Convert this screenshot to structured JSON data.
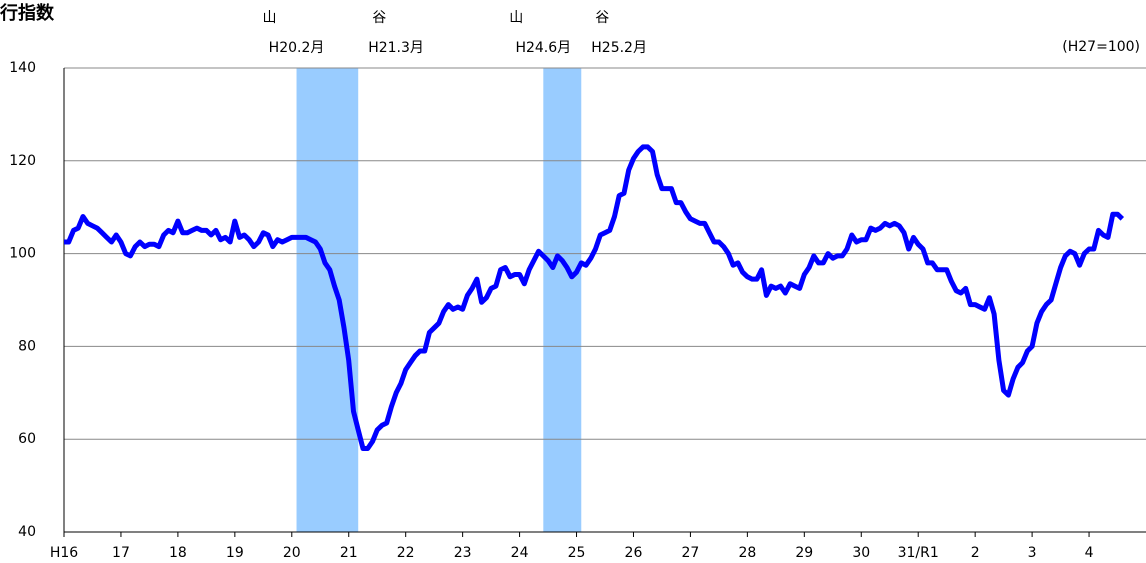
{
  "chart_data": {
    "type": "line",
    "title": "行指数",
    "note": "(H27=100)",
    "categories": [
      "H16",
      null,
      null,
      null,
      null,
      null,
      null,
      null,
      null,
      null,
      null,
      null,
      "17",
      null,
      null,
      null,
      null,
      null,
      null,
      null,
      null,
      null,
      null,
      null,
      "18",
      null,
      null,
      null,
      null,
      null,
      null,
      null,
      null,
      null,
      null,
      null,
      "19",
      null,
      null,
      null,
      null,
      null,
      null,
      null,
      null,
      null,
      null,
      null,
      "20",
      null,
      null,
      null,
      null,
      null,
      null,
      null,
      null,
      null,
      null,
      null,
      "21",
      null,
      null,
      null,
      null,
      null,
      null,
      null,
      null,
      null,
      null,
      null,
      "22",
      null,
      null,
      null,
      null,
      null,
      null,
      null,
      null,
      null,
      null,
      null,
      "23",
      null,
      null,
      null,
      null,
      null,
      null,
      null,
      null,
      null,
      null,
      null,
      "24",
      null,
      null,
      null,
      null,
      null,
      null,
      null,
      null,
      null,
      null,
      null,
      "25",
      null,
      null,
      null,
      null,
      null,
      null,
      null,
      null,
      null,
      null,
      null,
      "26",
      null,
      null,
      null,
      null,
      null,
      null,
      null,
      null,
      null,
      null,
      null,
      "27",
      null,
      null,
      null,
      null,
      null,
      null,
      null,
      null,
      null,
      null,
      null,
      "28",
      null,
      null,
      null,
      null,
      null,
      null,
      null,
      null,
      null,
      null,
      null,
      "29",
      null,
      null,
      null,
      null,
      null,
      null,
      null,
      null,
      null,
      null,
      null,
      "30",
      null,
      null,
      null,
      null,
      null,
      null,
      null,
      null,
      null,
      null,
      null,
      "31/R1",
      null,
      null,
      null,
      null,
      null,
      null,
      null,
      null,
      null,
      null,
      null,
      "2",
      null,
      null,
      null,
      null,
      null,
      null,
      null,
      null,
      null,
      null,
      null,
      "3",
      null,
      null,
      null,
      null,
      null,
      null,
      null,
      null,
      null,
      null,
      null,
      "4",
      null,
      null,
      null,
      null,
      null,
      null,
      null
    ],
    "series": [
      {
        "color": "#0000ff",
        "values": [
          102.5,
          102.5,
          105,
          105.5,
          108,
          106.5,
          106,
          105.5,
          104.5,
          103.5,
          102.5,
          104,
          102.5,
          100,
          99.5,
          101.5,
          102.5,
          101.5,
          102,
          102,
          101.5,
          104,
          105,
          104.5,
          107,
          104.5,
          104.5,
          105,
          105.5,
          105,
          105,
          104,
          105,
          103,
          103.5,
          102.5,
          107,
          103.5,
          104,
          103,
          101.5,
          102.5,
          104.5,
          104,
          101.5,
          103,
          102.5,
          103,
          103.5,
          103.5,
          103.5,
          103.5,
          103,
          102.5,
          101,
          98,
          96.5,
          93,
          90,
          84,
          77,
          66,
          62,
          58,
          58,
          59.5,
          62,
          63,
          63.5,
          67,
          70,
          72,
          75,
          76.5,
          78,
          79,
          79,
          83,
          84,
          85,
          87.5,
          89,
          88,
          88.5,
          88,
          91,
          92.5,
          94.5,
          89.5,
          90.5,
          92.5,
          93,
          96.5,
          97,
          95,
          95.5,
          95.5,
          93.5,
          96.5,
          98.5,
          100.5,
          99.5,
          98.5,
          97,
          99.5,
          98.5,
          97,
          95,
          96,
          98,
          97.5,
          99,
          101,
          104,
          104.5,
          105,
          108,
          112.5,
          113,
          118,
          120.5,
          122,
          123,
          123,
          122,
          117,
          114,
          114,
          114,
          111,
          111,
          109,
          107.5,
          107,
          106.5,
          106.5,
          104.5,
          102.5,
          102.5,
          101.5,
          100,
          97.5,
          98,
          96,
          95,
          94.5,
          94.5,
          96.5,
          91,
          93,
          92.5,
          93,
          91.5,
          93.5,
          93,
          92.5,
          95.5,
          97,
          99.5,
          98,
          98,
          100,
          99,
          99.5,
          99.5,
          101,
          104,
          102.5,
          103,
          103,
          105.5,
          105,
          105.5,
          106.5,
          106,
          106.5,
          106,
          104.5,
          101,
          103.5,
          102,
          101,
          98,
          98,
          96.5,
          96.5,
          96.5,
          94,
          92,
          91.5,
          92.5,
          89,
          89,
          88.5,
          88,
          90.5,
          87,
          77,
          70.5,
          69.5,
          73,
          75.5,
          76.5,
          79,
          80,
          85,
          87.5,
          89,
          90,
          93.5,
          97,
          99.5,
          100.5,
          100,
          97.5,
          100,
          101,
          101,
          105,
          104,
          103.5,
          108.5,
          108.5,
          107.5
        ]
      }
    ],
    "xlim": [
      0,
      228
    ],
    "ylim": [
      40,
      140
    ],
    "yticks": [
      40,
      60,
      80,
      100,
      120,
      140
    ],
    "grid": true,
    "bands": [
      {
        "color": "#99ccff",
        "start": 49,
        "end": 62,
        "peak_label": "山",
        "peak_date": "H20.2月",
        "trough_label": "谷",
        "trough_date": "H21.3月"
      },
      {
        "color": "#99ccff",
        "start": 101,
        "end": 109,
        "peak_label": "山",
        "peak_date": "H24.6月",
        "trough_label": "谷",
        "trough_date": "H25.2月"
      }
    ]
  }
}
